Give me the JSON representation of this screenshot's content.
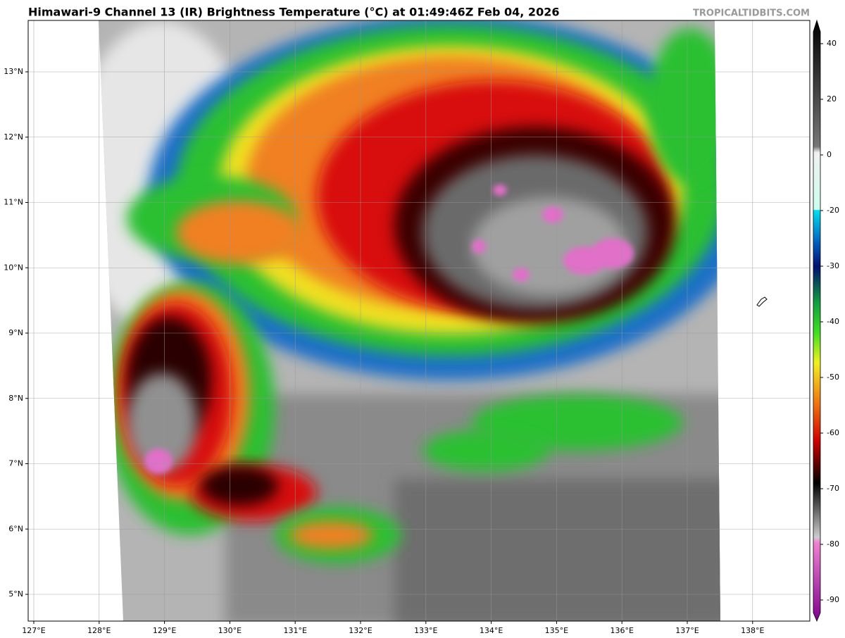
{
  "header": {
    "title": "Himawari-9 Channel 13 (IR) Brightness Temperature (°C) at 01:49:46Z Feb 04, 2026",
    "watermark": "TROPICALTIDBITS.COM"
  },
  "map": {
    "lon_labels": [
      "127°E",
      "128°E",
      "129°E",
      "130°E",
      "131°E",
      "132°E",
      "133°E",
      "134°E",
      "135°E",
      "136°E",
      "137°E",
      "138°E"
    ],
    "lat_labels": [
      "13°N",
      "12°N",
      "11°N",
      "10°N",
      "9°N",
      "8°N",
      "7°N",
      "6°N",
      "5°N"
    ]
  },
  "colorbar": {
    "ticks": [
      40,
      20,
      0,
      -20,
      -30,
      -40,
      -50,
      -60,
      -70,
      -80,
      -90
    ]
  }
}
